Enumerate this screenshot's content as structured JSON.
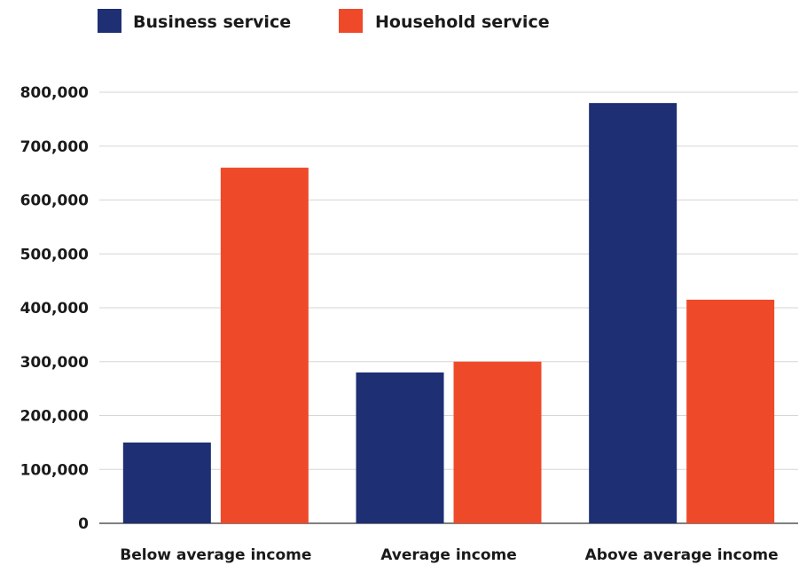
{
  "chart_data": {
    "type": "bar",
    "title": "",
    "xlabel": "",
    "ylabel": "",
    "categories": [
      "Below average income",
      "Average income",
      "Above average income"
    ],
    "series": [
      {
        "name": "Business service",
        "color": "#1e2f73",
        "values": [
          150000,
          280000,
          780000
        ]
      },
      {
        "name": "Household service",
        "color": "#ee4a2a",
        "values": [
          660000,
          300000,
          415000
        ]
      }
    ],
    "ylim": [
      0,
      800000
    ],
    "yticks": [
      "0",
      "100,000",
      "200,000",
      "300,000",
      "400,000",
      "500,000",
      "600,000",
      "700,000",
      "800,000"
    ],
    "grid": true,
    "legend": "top-left"
  }
}
